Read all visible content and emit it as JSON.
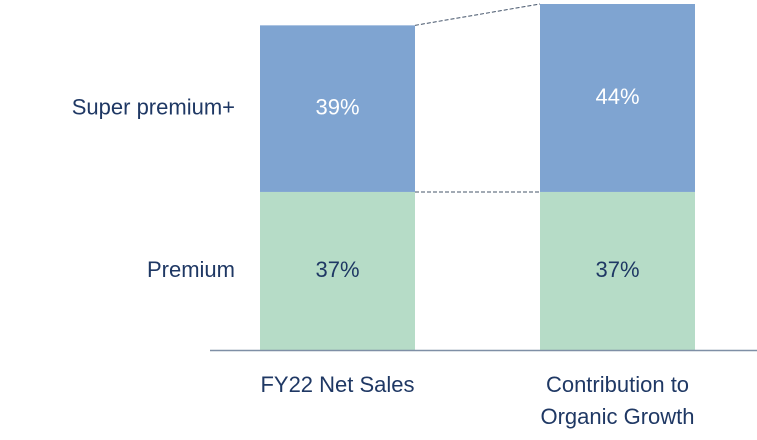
{
  "chart_data": {
    "type": "stacked_bar",
    "categories": [
      "FY22 Net Sales",
      "Contribution to Organic Growth"
    ],
    "series": [
      {
        "name": "Premium",
        "color": "#b6dcc7",
        "label_color": "#1f3864",
        "values": [
          37,
          37
        ],
        "value_labels": [
          "37%",
          "37%"
        ]
      },
      {
        "name": "Super premium+",
        "color": "#7fa4d1",
        "label_color": "#ffffff",
        "values": [
          39,
          44
        ],
        "value_labels": [
          "39%",
          "44%"
        ]
      }
    ]
  }
}
